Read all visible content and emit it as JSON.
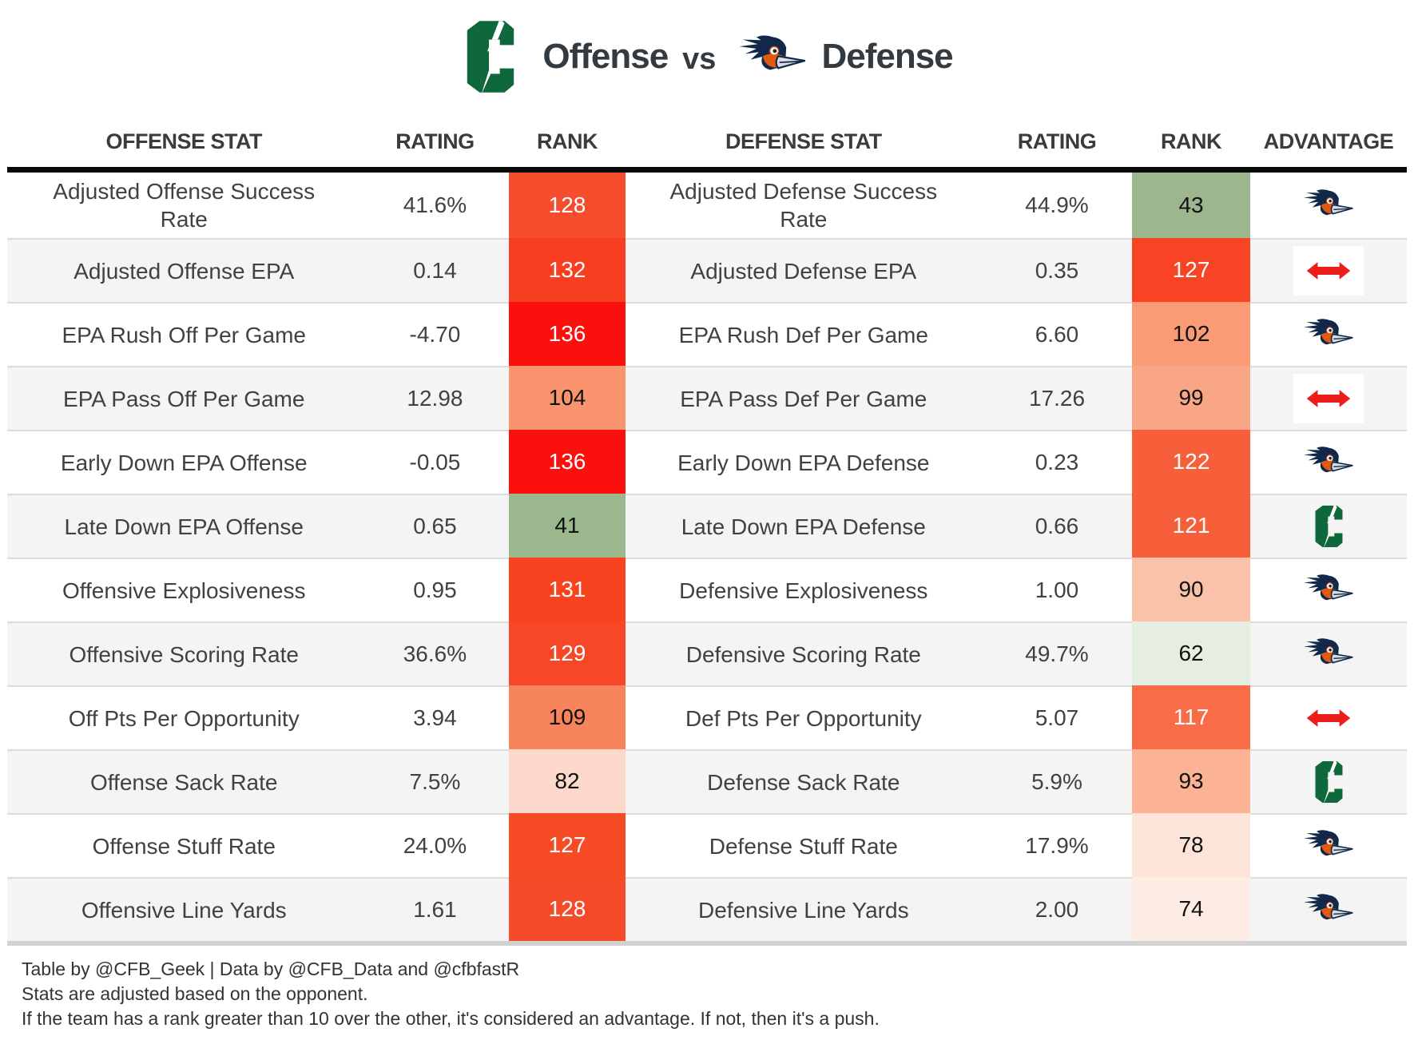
{
  "title": {
    "left_logo": "charlotte-49ers-logo",
    "left_label": "Offense",
    "vs": "vs",
    "right_logo": "utsa-roadrunner-logo",
    "right_label": "Defense"
  },
  "columns": [
    "OFFENSE STAT",
    "RATING",
    "RANK",
    "DEFENSE STAT",
    "RATING",
    "RANK",
    "ADVANTAGE"
  ],
  "advantage_icons": {
    "utsa": "utsa-roadrunner-logo",
    "charlotte": "charlotte-49ers-logo",
    "push": "push-double-arrow"
  },
  "colors": {
    "charlotte_green": "#0e683c",
    "utsa_navy": "#12284b",
    "utsa_orange": "#e15a11",
    "push_red": "#ec1d1d",
    "header_rule_black": "#0a0a0a",
    "row_alt_gray": "#f4f4f4"
  },
  "rows": [
    {
      "offense_stat": "Adjusted Offense Success Rate",
      "offense_rating": "41.6%",
      "offense_rank": "128",
      "offense_rank_bg": "#f54d2e",
      "offense_rank_fg": "#ffffff",
      "defense_stat": "Adjusted Defense Success Rate",
      "defense_rating": "44.9%",
      "defense_rank": "43",
      "defense_rank_bg": "#9cb78e",
      "defense_rank_fg": "#111111",
      "advantage": "utsa"
    },
    {
      "offense_stat": "Adjusted Offense EPA",
      "offense_rating": "0.14",
      "offense_rank": "132",
      "offense_rank_bg": "#f83e20",
      "offense_rank_fg": "#ffffff",
      "defense_stat": "Adjusted Defense EPA",
      "defense_rating": "0.35",
      "defense_rank": "127",
      "defense_rank_bg": "#f84424",
      "defense_rank_fg": "#ffffff",
      "advantage": "push"
    },
    {
      "offense_stat": "EPA Rush Off Per Game",
      "offense_rating": "-4.70",
      "offense_rank": "136",
      "offense_rank_bg": "#fb100e",
      "offense_rank_fg": "#ffffff",
      "defense_stat": "EPA Rush Def Per Game",
      "defense_rating": "6.60",
      "defense_rank": "102",
      "defense_rank_bg": "#fa9b76",
      "defense_rank_fg": "#111111",
      "advantage": "utsa"
    },
    {
      "offense_stat": "EPA Pass Off Per Game",
      "offense_rating": "12.98",
      "offense_rank": "104",
      "offense_rank_bg": "#f9946e",
      "offense_rank_fg": "#111111",
      "defense_stat": "EPA Pass Def Per Game",
      "defense_rating": "17.26",
      "defense_rank": "99",
      "defense_rank_bg": "#f9a687",
      "defense_rank_fg": "#111111",
      "advantage": "push"
    },
    {
      "offense_stat": "Early Down EPA Offense",
      "offense_rating": "-0.05",
      "offense_rank": "136",
      "offense_rank_bg": "#fb100e",
      "offense_rank_fg": "#ffffff",
      "defense_stat": "Early Down EPA Defense",
      "defense_rating": "0.23",
      "defense_rank": "122",
      "defense_rank_bg": "#f75e3a",
      "defense_rank_fg": "#ffffff",
      "advantage": "utsa"
    },
    {
      "offense_stat": "Late Down EPA Offense",
      "offense_rating": "0.65",
      "offense_rank": "41",
      "offense_rank_bg": "#9ab78d",
      "offense_rank_fg": "#111111",
      "defense_stat": "Late Down EPA Defense",
      "defense_rating": "0.66",
      "defense_rank": "121",
      "defense_rank_bg": "#f75f3b",
      "defense_rank_fg": "#ffffff",
      "advantage": "charlotte"
    },
    {
      "offense_stat": "Offensive Explosiveness",
      "offense_rating": "0.95",
      "offense_rank": "131",
      "offense_rank_bg": "#f74320",
      "offense_rank_fg": "#ffffff",
      "defense_stat": "Defensive Explosiveness",
      "defense_rating": "1.00",
      "defense_rank": "90",
      "defense_rank_bg": "#fbc2aa",
      "defense_rank_fg": "#111111",
      "advantage": "utsa"
    },
    {
      "offense_stat": "Offensive Scoring Rate",
      "offense_rating": "36.6%",
      "offense_rank": "129",
      "offense_rank_bg": "#f64827",
      "offense_rank_fg": "#ffffff",
      "defense_stat": "Defensive Scoring Rate",
      "defense_rating": "49.7%",
      "defense_rank": "62",
      "defense_rank_bg": "#e6eee1",
      "defense_rank_fg": "#111111",
      "advantage": "utsa"
    },
    {
      "offense_stat": "Off Pts Per Opportunity",
      "offense_rating": "3.94",
      "offense_rank": "109",
      "offense_rank_bg": "#f8845d",
      "offense_rank_fg": "#111111",
      "defense_stat": "Def Pts Per Opportunity",
      "defense_rating": "5.07",
      "defense_rank": "117",
      "defense_rank_bg": "#f86d48",
      "defense_rank_fg": "#ffffff",
      "advantage": "push"
    },
    {
      "offense_stat": "Offense Sack Rate",
      "offense_rating": "7.5%",
      "offense_rank": "82",
      "offense_rank_bg": "#fcd9ca",
      "offense_rank_fg": "#111111",
      "defense_stat": "Defense Sack Rate",
      "defense_rating": "5.9%",
      "defense_rank": "93",
      "defense_rank_bg": "#fbb295",
      "defense_rank_fg": "#111111",
      "advantage": "charlotte"
    },
    {
      "offense_stat": "Offense Stuff Rate",
      "offense_rating": "24.0%",
      "offense_rank": "127",
      "offense_rank_bg": "#f74b25",
      "offense_rank_fg": "#ffffff",
      "defense_stat": "Defense Stuff Rate",
      "defense_rating": "17.9%",
      "defense_rank": "78",
      "defense_rank_bg": "#fce4d8",
      "defense_rank_fg": "#111111",
      "advantage": "utsa"
    },
    {
      "offense_stat": "Offensive Line Yards",
      "offense_rating": "1.61",
      "offense_rank": "128",
      "offense_rank_bg": "#f64b2a",
      "offense_rank_fg": "#ffffff",
      "defense_stat": "Defensive Line Yards",
      "defense_rating": "2.00",
      "defense_rank": "74",
      "defense_rank_bg": "#fcece3",
      "defense_rank_fg": "#111111",
      "advantage": "utsa"
    }
  ],
  "footer": {
    "line1": "Table by @CFB_Geek | Data by @CFB_Data and @cfbfastR",
    "line2": "Stats are adjusted based on the opponent.",
    "line3": "If the team has a rank greater than 10 over the other, it's considered an advantage. If not, then it's a push."
  }
}
